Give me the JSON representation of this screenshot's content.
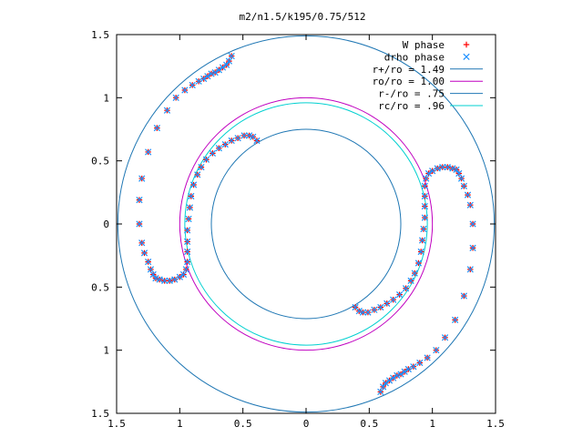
{
  "chart_data": {
    "type": "scatter",
    "title": "m2/n1.5/k195/0.75/512",
    "xlabel": "",
    "ylabel": "",
    "xlim": [
      -1.5,
      1.5
    ],
    "ylim": [
      -1.5,
      1.5
    ],
    "x_tick_labels": [
      "1.5",
      "1",
      "0.5",
      "0",
      "0.5",
      "1",
      "1.5"
    ],
    "y_tick_labels": [
      "1.5",
      "1",
      "0.5",
      "0",
      "0.5",
      "1",
      "1.5"
    ],
    "grid": false,
    "legend_position": "top-right",
    "colors": {
      "w_phase": "#ff0000",
      "drho_phase": "#1e90ff",
      "r_plus": "#1f77b4",
      "r_o": "#c000c0",
      "r_minus": "#1f77b4",
      "r_c": "#00d0d0"
    },
    "circles": [
      {
        "legend": "r+/ro = 1.49",
        "radius": 1.49
      },
      {
        "legend": "ro/ro = 1.00",
        "radius": 1.0
      },
      {
        "legend": "r-/ro = .75",
        "radius": 0.75
      },
      {
        "legend": "rc/ro = .96",
        "radius": 0.96
      }
    ],
    "series": [
      {
        "name": "W phase",
        "marker": "+",
        "arms": [
          [
            [
              0.59,
              -1.33
            ],
            [
              0.61,
              -1.29
            ],
            [
              0.63,
              -1.26
            ],
            [
              0.66,
              -1.24
            ],
            [
              0.69,
              -1.22
            ],
            [
              0.72,
              -1.2
            ],
            [
              0.75,
              -1.19
            ],
            [
              0.78,
              -1.17
            ],
            [
              0.81,
              -1.15
            ],
            [
              0.85,
              -1.13
            ],
            [
              0.9,
              -1.1
            ],
            [
              0.96,
              -1.06
            ],
            [
              1.03,
              -1.0
            ],
            [
              1.1,
              -0.9
            ],
            [
              1.18,
              -0.76
            ],
            [
              1.25,
              -0.57
            ],
            [
              1.3,
              -0.36
            ],
            [
              1.32,
              -0.19
            ],
            [
              1.32,
              0.0
            ],
            [
              1.3,
              0.15
            ],
            [
              1.28,
              0.23
            ],
            [
              1.25,
              0.3
            ],
            [
              1.23,
              0.36
            ],
            [
              1.21,
              0.4
            ],
            [
              1.19,
              0.43
            ],
            [
              1.16,
              0.44
            ],
            [
              1.12,
              0.45
            ],
            [
              1.08,
              0.45
            ],
            [
              1.04,
              0.44
            ],
            [
              1.0,
              0.42
            ],
            [
              0.97,
              0.4
            ],
            [
              0.95,
              0.36
            ],
            [
              0.94,
              0.3
            ],
            [
              0.94,
              0.22
            ],
            [
              0.94,
              0.14
            ],
            [
              0.94,
              0.05
            ],
            [
              0.93,
              -0.04
            ],
            [
              0.92,
              -0.13
            ],
            [
              0.91,
              -0.22
            ],
            [
              0.89,
              -0.31
            ],
            [
              0.86,
              -0.39
            ],
            [
              0.83,
              -0.45
            ],
            [
              0.79,
              -0.51
            ],
            [
              0.74,
              -0.56
            ],
            [
              0.69,
              -0.6
            ],
            [
              0.64,
              -0.63
            ],
            [
              0.59,
              -0.66
            ],
            [
              0.54,
              -0.68
            ],
            [
              0.49,
              -0.7
            ],
            [
              0.45,
              -0.7
            ],
            [
              0.42,
              -0.69
            ],
            [
              0.39,
              -0.66
            ]
          ],
          [
            [
              -0.59,
              1.33
            ],
            [
              -0.61,
              1.29
            ],
            [
              -0.63,
              1.26
            ],
            [
              -0.66,
              1.24
            ],
            [
              -0.69,
              1.22
            ],
            [
              -0.72,
              1.2
            ],
            [
              -0.75,
              1.19
            ],
            [
              -0.78,
              1.17
            ],
            [
              -0.81,
              1.15
            ],
            [
              -0.85,
              1.13
            ],
            [
              -0.9,
              1.1
            ],
            [
              -0.96,
              1.06
            ],
            [
              -1.03,
              1.0
            ],
            [
              -1.1,
              0.9
            ],
            [
              -1.18,
              0.76
            ],
            [
              -1.25,
              0.57
            ],
            [
              -1.3,
              0.36
            ],
            [
              -1.32,
              0.19
            ],
            [
              -1.32,
              0.0
            ],
            [
              -1.3,
              -0.15
            ],
            [
              -1.28,
              -0.23
            ],
            [
              -1.25,
              -0.3
            ],
            [
              -1.23,
              -0.36
            ],
            [
              -1.21,
              -0.4
            ],
            [
              -1.19,
              -0.43
            ],
            [
              -1.16,
              -0.44
            ],
            [
              -1.12,
              -0.45
            ],
            [
              -1.08,
              -0.45
            ],
            [
              -1.04,
              -0.44
            ],
            [
              -1.0,
              -0.42
            ],
            [
              -0.97,
              -0.4
            ],
            [
              -0.95,
              -0.36
            ],
            [
              -0.94,
              -0.3
            ],
            [
              -0.94,
              -0.22
            ],
            [
              -0.94,
              -0.14
            ],
            [
              -0.94,
              -0.05
            ],
            [
              -0.93,
              0.04
            ],
            [
              -0.92,
              0.13
            ],
            [
              -0.91,
              0.22
            ],
            [
              -0.89,
              0.31
            ],
            [
              -0.86,
              0.39
            ],
            [
              -0.83,
              0.45
            ],
            [
              -0.79,
              0.51
            ],
            [
              -0.74,
              0.56
            ],
            [
              -0.69,
              0.6
            ],
            [
              -0.64,
              0.63
            ],
            [
              -0.59,
              0.66
            ],
            [
              -0.54,
              0.68
            ],
            [
              -0.49,
              0.7
            ],
            [
              -0.45,
              0.7
            ],
            [
              -0.42,
              0.69
            ],
            [
              -0.39,
              0.66
            ]
          ]
        ]
      },
      {
        "name": "drho phase",
        "marker": "x",
        "arms": [
          [
            [
              0.59,
              -1.33
            ],
            [
              0.61,
              -1.29
            ],
            [
              0.63,
              -1.26
            ],
            [
              0.66,
              -1.24
            ],
            [
              0.69,
              -1.22
            ],
            [
              0.72,
              -1.2
            ],
            [
              0.75,
              -1.19
            ],
            [
              0.78,
              -1.17
            ],
            [
              0.81,
              -1.15
            ],
            [
              0.85,
              -1.13
            ],
            [
              0.9,
              -1.1
            ],
            [
              0.96,
              -1.06
            ],
            [
              1.03,
              -1.0
            ],
            [
              1.1,
              -0.9
            ],
            [
              1.18,
              -0.76
            ],
            [
              1.25,
              -0.57
            ],
            [
              1.3,
              -0.36
            ],
            [
              1.32,
              -0.19
            ],
            [
              1.32,
              0.0
            ],
            [
              1.3,
              0.15
            ],
            [
              1.28,
              0.23
            ],
            [
              1.25,
              0.3
            ],
            [
              1.23,
              0.36
            ],
            [
              1.21,
              0.4
            ],
            [
              1.19,
              0.43
            ],
            [
              1.16,
              0.44
            ],
            [
              1.12,
              0.45
            ],
            [
              1.08,
              0.45
            ],
            [
              1.04,
              0.44
            ],
            [
              1.0,
              0.42
            ],
            [
              0.97,
              0.4
            ],
            [
              0.95,
              0.36
            ],
            [
              0.94,
              0.3
            ],
            [
              0.94,
              0.22
            ],
            [
              0.94,
              0.14
            ],
            [
              0.94,
              0.05
            ],
            [
              0.93,
              -0.04
            ],
            [
              0.92,
              -0.13
            ],
            [
              0.91,
              -0.22
            ],
            [
              0.89,
              -0.31
            ],
            [
              0.86,
              -0.39
            ],
            [
              0.83,
              -0.45
            ],
            [
              0.79,
              -0.51
            ],
            [
              0.74,
              -0.56
            ],
            [
              0.69,
              -0.6
            ],
            [
              0.64,
              -0.63
            ],
            [
              0.59,
              -0.66
            ],
            [
              0.54,
              -0.68
            ],
            [
              0.49,
              -0.7
            ],
            [
              0.45,
              -0.7
            ],
            [
              0.42,
              -0.69
            ],
            [
              0.39,
              -0.66
            ]
          ],
          [
            [
              -0.59,
              1.33
            ],
            [
              -0.61,
              1.29
            ],
            [
              -0.63,
              1.26
            ],
            [
              -0.66,
              1.24
            ],
            [
              -0.69,
              1.22
            ],
            [
              -0.72,
              1.2
            ],
            [
              -0.75,
              1.19
            ],
            [
              -0.78,
              1.17
            ],
            [
              -0.81,
              1.15
            ],
            [
              -0.85,
              1.13
            ],
            [
              -0.9,
              1.1
            ],
            [
              -0.96,
              1.06
            ],
            [
              -1.03,
              1.0
            ],
            [
              -1.1,
              0.9
            ],
            [
              -1.18,
              0.76
            ],
            [
              -1.25,
              0.57
            ],
            [
              -1.3,
              0.36
            ],
            [
              -1.32,
              0.19
            ],
            [
              -1.32,
              0.0
            ],
            [
              -1.3,
              -0.15
            ],
            [
              -1.28,
              -0.23
            ],
            [
              -1.25,
              -0.3
            ],
            [
              -1.23,
              -0.36
            ],
            [
              -1.21,
              -0.4
            ],
            [
              -1.19,
              -0.43
            ],
            [
              -1.16,
              -0.44
            ],
            [
              -1.12,
              -0.45
            ],
            [
              -1.08,
              -0.45
            ],
            [
              -1.04,
              -0.44
            ],
            [
              -1.0,
              -0.42
            ],
            [
              -0.97,
              -0.4
            ],
            [
              -0.95,
              -0.36
            ],
            [
              -0.94,
              -0.3
            ],
            [
              -0.94,
              -0.22
            ],
            [
              -0.94,
              -0.14
            ],
            [
              -0.94,
              -0.05
            ],
            [
              -0.93,
              0.04
            ],
            [
              -0.92,
              0.13
            ],
            [
              -0.91,
              0.22
            ],
            [
              -0.89,
              0.31
            ],
            [
              -0.86,
              0.39
            ],
            [
              -0.83,
              0.45
            ],
            [
              -0.79,
              0.51
            ],
            [
              -0.74,
              0.56
            ],
            [
              -0.69,
              0.6
            ],
            [
              -0.64,
              0.63
            ],
            [
              -0.59,
              0.66
            ],
            [
              -0.54,
              0.68
            ],
            [
              -0.49,
              0.7
            ],
            [
              -0.45,
              0.7
            ],
            [
              -0.42,
              0.69
            ],
            [
              -0.39,
              0.66
            ]
          ]
        ]
      }
    ]
  }
}
